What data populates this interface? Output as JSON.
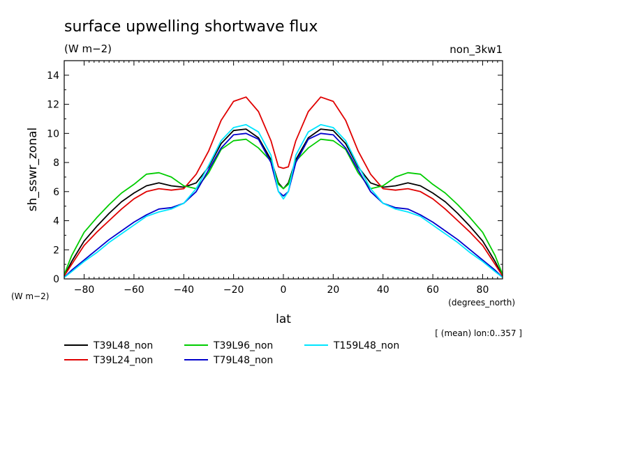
{
  "page": {
    "title": "surface upwelling shortwave flux",
    "units": "(W m−2)",
    "run_tag": "non_3kw1",
    "y_units_note": "(W m−2)",
    "x_units_note": "(degrees_north)",
    "mean_note": "[ (mean) lon:0..357 ]"
  },
  "chart_data": {
    "type": "line",
    "title": "surface upwelling shortwave flux",
    "subtitle": "(W m−2)",
    "xlabel": "lat",
    "ylabel": "sh_sswr_zonal",
    "xlim": [
      -88,
      88
    ],
    "ylim": [
      0,
      15
    ],
    "xticks": [
      -80,
      -60,
      -40,
      -20,
      0,
      20,
      40,
      60,
      80
    ],
    "yticks": [
      0,
      2,
      4,
      6,
      8,
      10,
      12,
      14
    ],
    "grid": false,
    "legend_position": "bottom",
    "x": [
      -88,
      -85,
      -80,
      -75,
      -70,
      -65,
      -60,
      -55,
      -50,
      -45,
      -40,
      -35,
      -30,
      -25,
      -20,
      -15,
      -10,
      -5,
      -2,
      0,
      2,
      5,
      10,
      15,
      20,
      25,
      30,
      35,
      40,
      45,
      50,
      55,
      60,
      65,
      70,
      75,
      80,
      85,
      88
    ],
    "series": [
      {
        "name": "T39L48_non",
        "color": "#000000",
        "values": [
          0.2,
          1.2,
          2.6,
          3.6,
          4.5,
          5.3,
          5.9,
          6.4,
          6.6,
          6.4,
          6.3,
          6.6,
          7.7,
          9.3,
          10.2,
          10.3,
          9.7,
          8.2,
          6.6,
          6.2,
          6.6,
          8.2,
          9.7,
          10.3,
          10.2,
          9.3,
          7.7,
          6.6,
          6.3,
          6.4,
          6.6,
          6.4,
          5.9,
          5.3,
          4.5,
          3.6,
          2.6,
          1.2,
          0.2
        ]
      },
      {
        "name": "T39L24_non",
        "color": "#e00000",
        "values": [
          0.2,
          1.0,
          2.3,
          3.2,
          4.0,
          4.8,
          5.5,
          6.0,
          6.2,
          6.1,
          6.2,
          7.2,
          8.8,
          10.9,
          12.2,
          12.5,
          11.5,
          9.5,
          7.7,
          7.6,
          7.7,
          9.5,
          11.5,
          12.5,
          12.2,
          10.9,
          8.8,
          7.2,
          6.2,
          6.1,
          6.2,
          6.0,
          5.5,
          4.8,
          4.0,
          3.2,
          2.3,
          1.0,
          0.2
        ]
      },
      {
        "name": "T39L96_non",
        "color": "#00cc00",
        "values": [
          0.3,
          1.6,
          3.2,
          4.2,
          5.1,
          5.9,
          6.5,
          7.2,
          7.3,
          7.0,
          6.4,
          6.2,
          7.3,
          8.9,
          9.5,
          9.6,
          9.0,
          8.1,
          6.5,
          6.2,
          6.5,
          8.1,
          9.0,
          9.6,
          9.5,
          8.9,
          7.3,
          6.2,
          6.4,
          7.0,
          7.3,
          7.2,
          6.5,
          5.9,
          5.1,
          4.2,
          3.2,
          1.6,
          0.3
        ]
      },
      {
        "name": "T79L48_non",
        "color": "#0000cc",
        "values": [
          0.1,
          0.6,
          1.3,
          2.0,
          2.7,
          3.3,
          3.9,
          4.4,
          4.8,
          4.9,
          5.2,
          6.0,
          7.5,
          9.0,
          9.9,
          10.0,
          9.6,
          8.0,
          6.0,
          5.7,
          6.0,
          8.0,
          9.6,
          10.0,
          9.9,
          9.0,
          7.5,
          6.0,
          5.2,
          4.9,
          4.8,
          4.4,
          3.9,
          3.3,
          2.7,
          2.0,
          1.3,
          0.6,
          0.1
        ]
      },
      {
        "name": "T159L48_non",
        "color": "#00e5ff",
        "values": [
          0.1,
          0.5,
          1.2,
          1.8,
          2.5,
          3.1,
          3.7,
          4.3,
          4.6,
          4.8,
          5.2,
          6.2,
          7.8,
          9.5,
          10.4,
          10.6,
          10.1,
          8.5,
          6.0,
          5.5,
          6.0,
          8.5,
          10.1,
          10.6,
          10.4,
          9.5,
          7.8,
          6.2,
          5.2,
          4.8,
          4.6,
          4.3,
          3.7,
          3.1,
          2.5,
          1.8,
          1.2,
          0.5,
          0.1
        ]
      }
    ]
  }
}
